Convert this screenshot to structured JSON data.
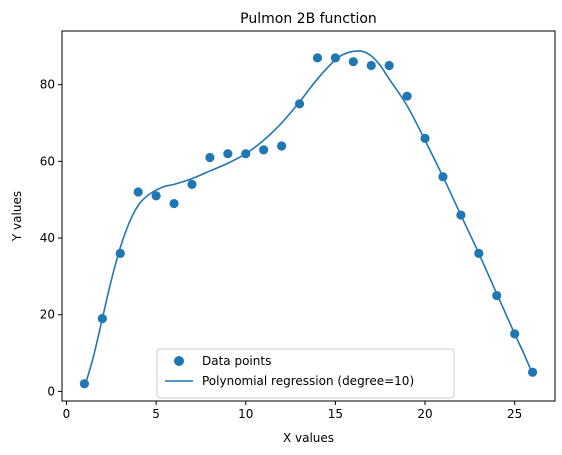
{
  "chart_data": {
    "type": "scatter",
    "title": "Pulmon 2B function",
    "xlabel": "X values",
    "ylabel": "Y values",
    "xlim": [
      -0.25,
      27.25
    ],
    "ylim": [
      -2.5,
      94
    ],
    "xticks": [
      0,
      5,
      10,
      15,
      20,
      25
    ],
    "yticks": [
      0,
      20,
      40,
      60,
      80
    ],
    "grid": false,
    "legend_position": "bottom-center",
    "series": [
      {
        "name": "Data points",
        "kind": "scatter",
        "color": "#1f77b4",
        "x": [
          1,
          2,
          3,
          4,
          5,
          6,
          7,
          8,
          9,
          10,
          11,
          12,
          13,
          14,
          15,
          16,
          17,
          18,
          19,
          20,
          21,
          22,
          23,
          24,
          25,
          26
        ],
        "y": [
          2,
          19,
          36,
          52,
          51,
          49,
          54,
          61,
          62,
          62,
          63,
          64,
          75,
          87,
          87,
          86,
          85,
          85,
          77,
          66,
          56,
          46,
          36,
          25,
          15,
          5
        ]
      },
      {
        "name": "Polynomial regression (degree=10)",
        "kind": "line",
        "color": "#1f77b4",
        "x": [
          1,
          1.5,
          2,
          2.5,
          3,
          3.5,
          4,
          4.5,
          5,
          5.5,
          6,
          7,
          8,
          9,
          10,
          11,
          12,
          13,
          14,
          15,
          15.5,
          16,
          16.5,
          17,
          17.5,
          18,
          19,
          20,
          21,
          22,
          23,
          24,
          25,
          25.5,
          26
        ],
        "y": [
          1,
          9,
          19,
          29,
          37.5,
          44,
          48.5,
          51,
          52.5,
          53.5,
          54,
          55.5,
          57.5,
          59.5,
          62,
          65.5,
          70,
          75.5,
          81.5,
          86.5,
          88,
          88.7,
          88.7,
          87.5,
          85,
          81.5,
          74.5,
          65.5,
          56,
          46,
          36,
          25.5,
          15,
          10,
          4.5
        ]
      }
    ]
  }
}
